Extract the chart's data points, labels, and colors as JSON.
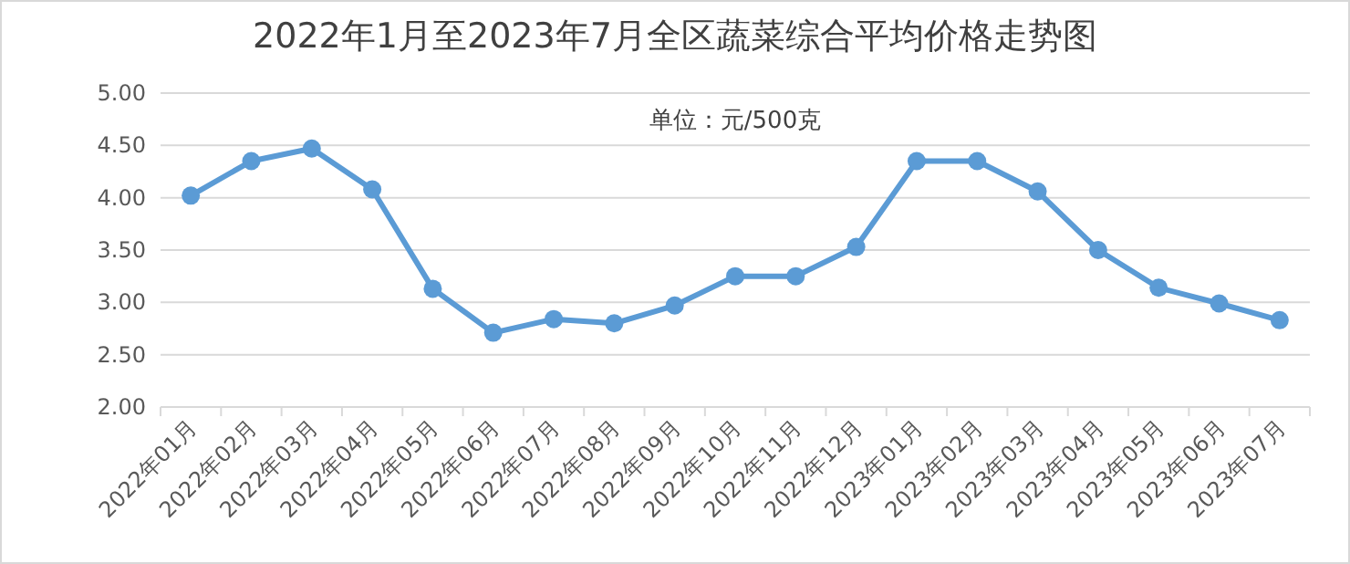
{
  "chart_data": {
    "type": "line",
    "title": "2022年1月至2023年7月全区蔬菜综合平均价格走势图",
    "annotations": [
      "单位：元/500克"
    ],
    "categories": [
      "2022年01月",
      "2022年02月",
      "2022年03月",
      "2022年04月",
      "2022年05月",
      "2022年06月",
      "2022年07月",
      "2022年08月",
      "2022年09月",
      "2022年10月",
      "2022年11月",
      "2022年12月",
      "2023年01月",
      "2023年02月",
      "2023年03月",
      "2023年04月",
      "2023年05月",
      "2023年06月",
      "2023年07月"
    ],
    "series": [
      {
        "color": "#5b9bd5",
        "values": [
          4.02,
          4.35,
          4.47,
          4.08,
          3.13,
          2.71,
          2.84,
          2.8,
          2.97,
          3.25,
          3.25,
          3.53,
          4.35,
          4.35,
          4.06,
          3.5,
          3.14,
          2.99,
          2.83
        ]
      }
    ],
    "ylim": [
      2,
      5
    ],
    "yticks": [
      {
        "value": 2,
        "label": "2.00"
      },
      {
        "value": 2.5,
        "label": "2.50"
      },
      {
        "value": 3,
        "label": "3.00"
      },
      {
        "value": 3.5,
        "label": "3.50"
      },
      {
        "value": 4,
        "label": "4.00"
      },
      {
        "value": 4.5,
        "label": "4.50"
      },
      {
        "value": 5,
        "label": "5.00"
      }
    ],
    "grid": "y",
    "marker": "circle",
    "line_style": "solid"
  }
}
